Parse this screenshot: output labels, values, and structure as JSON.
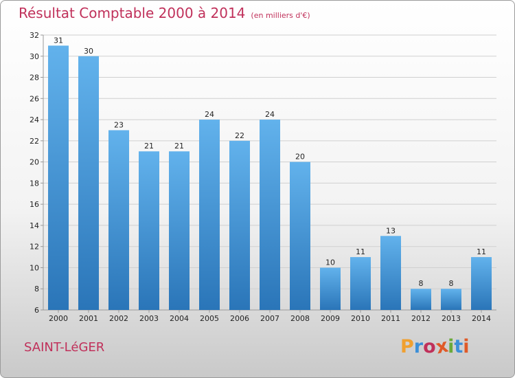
{
  "header": {
    "title": "Résultat Comptable 2000 à 2014",
    "subtitle": "(en milliers d'€)"
  },
  "footer": {
    "city": "SAINT-LéGER",
    "logo_letters": [
      "P",
      "r",
      "o",
      "x",
      "i",
      "t",
      "i"
    ],
    "logo_colors": [
      "#f0a030",
      "#3c8fd8",
      "#c0305a",
      "#e05a28",
      "#6aaa3a",
      "#3c8fd8",
      "#e05a28"
    ]
  },
  "colors": {
    "bar_top": "#62b2ec",
    "bar_bottom": "#2a75b8",
    "grid": "#cfcfcf",
    "axis": "#999999",
    "accent": "#c0305a"
  },
  "chart_data": {
    "type": "bar",
    "title": "Résultat Comptable 2000 à 2014",
    "xlabel": "",
    "ylabel": "",
    "ylim": [
      6,
      32
    ],
    "yticks": [
      6,
      8,
      10,
      12,
      14,
      16,
      18,
      20,
      22,
      24,
      26,
      28,
      30,
      32
    ],
    "grid": true,
    "legend": "none",
    "categories": [
      "2000",
      "2001",
      "2002",
      "2003",
      "2004",
      "2005",
      "2006",
      "2007",
      "2008",
      "2009",
      "2010",
      "2011",
      "2012",
      "2013",
      "2014"
    ],
    "values": [
      31,
      30,
      23,
      21,
      21,
      24,
      22,
      24,
      20,
      10,
      11,
      13,
      8,
      8,
      11
    ]
  }
}
